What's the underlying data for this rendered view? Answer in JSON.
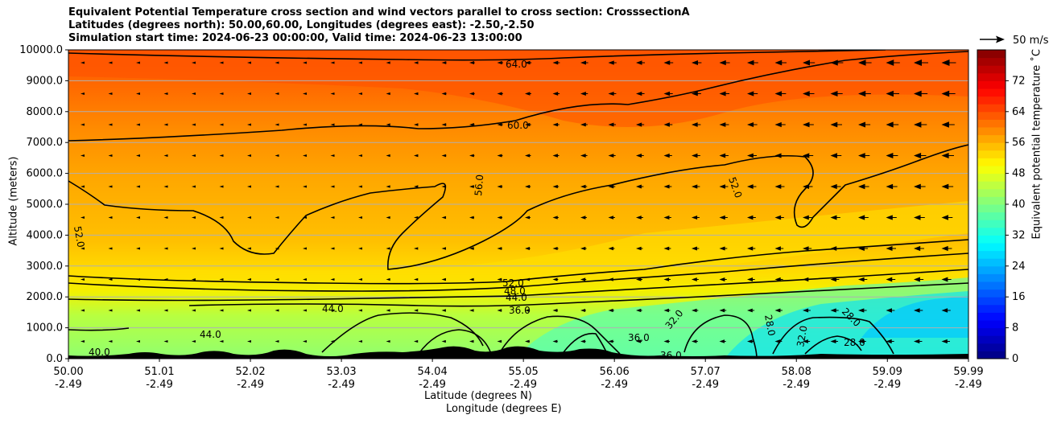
{
  "chart_data": {
    "type": "heatmap",
    "title_lines": [
      "Equivalent Potential Temperature cross section and wind vectors parallel to cross section: CrosssectionA",
      "Latitudes (degrees north): 50.00,60.00, Longitudes (degrees east): -2.50,-2.50",
      "Simulation start time: 2024-06-23 00:00:00, Valid time: 2024-06-23 13:00:00"
    ],
    "ylabel": "Altitude (meters)",
    "xlabel_lines": [
      "Latitude (degrees N)",
      "Longitude (degrees E)"
    ],
    "colorbar_label": "Equivalent potential temperature ˚C",
    "reference_vector_label": "50 m/s",
    "ylim": [
      0,
      10000
    ],
    "xlim": [
      50.0,
      59.99
    ],
    "yticks": [
      "0.0",
      "1000.0",
      "2000.0",
      "3000.0",
      "4000.0",
      "5000.0",
      "6000.0",
      "7000.0",
      "8000.0",
      "9000.0",
      "10000.0"
    ],
    "yvalues": [
      0,
      1000,
      2000,
      3000,
      4000,
      5000,
      6000,
      7000,
      8000,
      9000,
      10000
    ],
    "xticks": [
      {
        "lat": "50.00",
        "lon": "-2.49",
        "v": 50.0
      },
      {
        "lat": "51.01",
        "lon": "-2.49",
        "v": 51.01
      },
      {
        "lat": "52.02",
        "lon": "-2.49",
        "v": 52.02
      },
      {
        "lat": "53.03",
        "lon": "-2.49",
        "v": 53.03
      },
      {
        "lat": "54.04",
        "lon": "-2.49",
        "v": 54.04
      },
      {
        "lat": "55.05",
        "lon": "-2.49",
        "v": 55.05
      },
      {
        "lat": "56.06",
        "lon": "-2.49",
        "v": 56.06
      },
      {
        "lat": "57.07",
        "lon": "-2.49",
        "v": 57.07
      },
      {
        "lat": "58.08",
        "lon": "-2.49",
        "v": 58.08
      },
      {
        "lat": "59.09",
        "lon": "-2.49",
        "v": 59.09
      },
      {
        "lat": "59.99",
        "lon": "-2.49",
        "v": 59.99
      }
    ],
    "colorbar_ticks": [
      "0",
      "8",
      "16",
      "24",
      "32",
      "40",
      "48",
      "56",
      "64",
      "72"
    ],
    "colorbar_range": [
      0,
      80
    ],
    "contour_levels": [
      {
        "label": "28.0"
      },
      {
        "label": "32.0"
      },
      {
        "label": "36.0"
      },
      {
        "label": "40.0"
      },
      {
        "label": "44.0"
      },
      {
        "label": "48.0"
      },
      {
        "label": "52.0"
      },
      {
        "label": "56.0"
      },
      {
        "label": "60.0"
      },
      {
        "label": "64.0"
      }
    ],
    "grid": "horizontal"
  },
  "colors": {
    "terrain": "#000000",
    "contour": "#000000",
    "grid": "#b0b0b0"
  }
}
